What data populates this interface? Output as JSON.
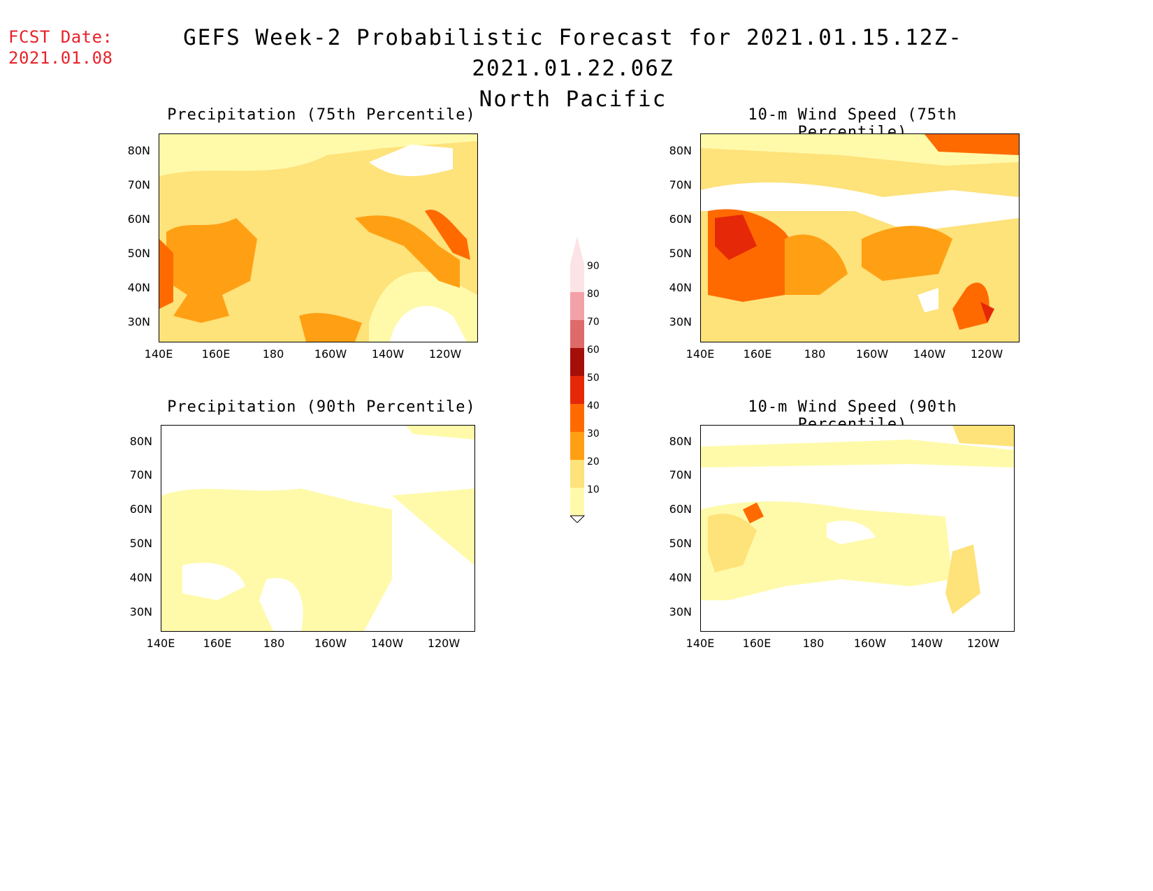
{
  "header": {
    "fcst_label": "FCST Date:",
    "fcst_date": "2021.01.08",
    "title": "GEFS Week-2 Probabilistic Forecast for 2021.01.15.12Z-2021.01.22.06Z",
    "subtitle": "North Pacific"
  },
  "axes": {
    "lat_labels": [
      "80N",
      "70N",
      "60N",
      "50N",
      "40N",
      "30N"
    ],
    "lon_labels": [
      "140E",
      "160E",
      "180",
      "160W",
      "140W",
      "120W"
    ]
  },
  "panels": [
    {
      "id": "precip-75",
      "title": "Precipitation (75th Percentile)"
    },
    {
      "id": "wind-75",
      "title": "10-m Wind Speed (75th Percentile)"
    },
    {
      "id": "precip-90",
      "title": "Precipitation (90th Percentile)"
    },
    {
      "id": "wind-90",
      "title": "10-m Wind Speed (90th Percentile)"
    }
  ],
  "colorbar": {
    "labels": [
      "90",
      "80",
      "70",
      "60",
      "50",
      "40",
      "30",
      "20",
      "10"
    ],
    "colors": [
      "#fbe3e6",
      "#f2a1a7",
      "#de6a6a",
      "#a50f0a",
      "#e52808",
      "#ff6a00",
      "#ffa014",
      "#fee27a",
      "#fffaaa"
    ]
  }
}
